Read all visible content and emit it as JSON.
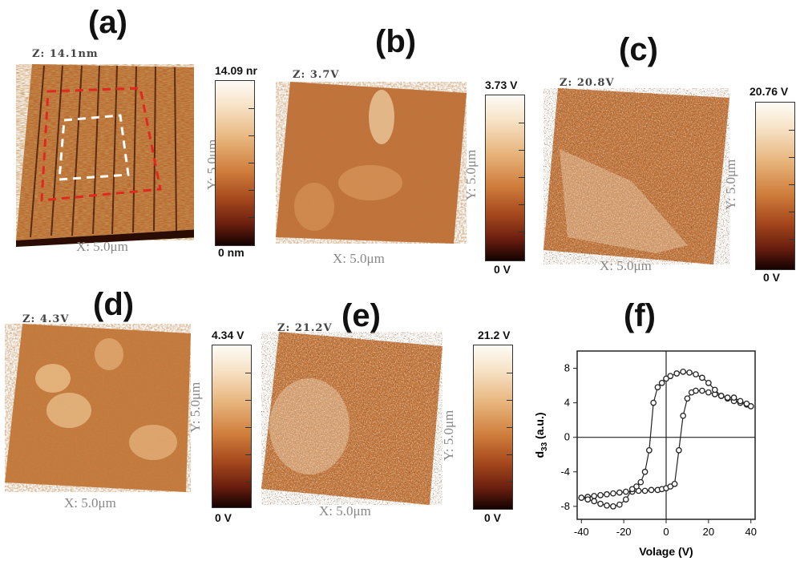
{
  "panels": [
    {
      "label": "(a)",
      "z": "Z: 14.1nm",
      "cmax": "14.09 nr",
      "cmin": "0 nm",
      "x": "X: 5.0μm",
      "y": "Y: 5.0μm"
    },
    {
      "label": "(b)",
      "z": "Z: 3.7V",
      "cmax": "3.73 V",
      "cmin": "0 V",
      "x": "X: 5.0μm",
      "y": "Y: 5.0μm"
    },
    {
      "label": "(c)",
      "z": "Z: 20.8V",
      "cmax": "20.76 V",
      "cmin": "0 V",
      "x": "X: 5.0μm",
      "y": "Y: 5.0μm"
    },
    {
      "label": "(d)",
      "z": "Z: 4.3V",
      "cmax": "4.34 V",
      "cmin": "0 V",
      "x": "X: 5.0μm",
      "y": "Y: 5.0μm"
    },
    {
      "label": "(e)",
      "z": "Z: 21.2V",
      "cmax": "21.2 V",
      "cmin": "0 V",
      "x": "X: 5.0μm",
      "y": "Y: 5.0μm"
    },
    {
      "label": "(f)"
    }
  ],
  "colors": {
    "afm_light": "#f5d2a0",
    "afm_mid": "#d0803f",
    "afm_dark": "#7a2a10",
    "box_red": "#e0281f",
    "box_white": "#ffffff"
  },
  "chart_data": {
    "type": "scatter",
    "xlabel": "Volage (V)",
    "ylabel": "d33 (a.u.)",
    "xlim": [
      -42,
      42
    ],
    "ylim": [
      -9.5,
      10
    ],
    "xticks": [
      -40,
      -20,
      0,
      20,
      40
    ],
    "yticks": [
      -8,
      -4,
      0,
      4,
      8
    ],
    "series": [
      {
        "x": [
          -40,
          -37,
          -34,
          -31,
          -28,
          -25,
          -22,
          -19,
          -16,
          -13,
          -10,
          -7,
          -4,
          -2,
          0,
          2,
          4,
          6,
          8,
          10,
          12,
          14,
          17,
          20,
          23,
          26,
          29,
          32,
          35,
          38,
          40
        ],
        "y": [
          -7.0,
          -6.9,
          -6.8,
          -6.7,
          -6.6,
          -6.5,
          -6.4,
          -6.3,
          -6.3,
          -6.2,
          -6.2,
          -6.1,
          -6.1,
          -6.0,
          -5.9,
          -5.7,
          -5.4,
          -1.5,
          2.5,
          4.5,
          5.2,
          5.4,
          5.4,
          5.2,
          5.0,
          4.8,
          4.5,
          4.2,
          4.0,
          3.8,
          3.6
        ]
      },
      {
        "x": [
          40,
          38,
          35,
          32,
          29,
          26,
          23,
          20,
          17,
          14,
          11,
          8,
          5,
          2,
          0,
          -2,
          -4,
          -6,
          -8,
          -10,
          -12,
          -14,
          -16,
          -19,
          -22,
          -25,
          -28,
          -31,
          -34,
          -37,
          -40
        ],
        "y": [
          3.6,
          3.9,
          4.2,
          4.6,
          4.6,
          4.8,
          5.5,
          6.3,
          6.9,
          7.3,
          7.5,
          7.6,
          7.4,
          7.1,
          6.8,
          6.3,
          5.8,
          4.0,
          -1.5,
          -4.0,
          -5.2,
          -5.7,
          -6.0,
          -7.2,
          -7.8,
          -8.0,
          -7.9,
          -7.7,
          -7.4,
          -7.2,
          -7.0
        ]
      }
    ]
  }
}
